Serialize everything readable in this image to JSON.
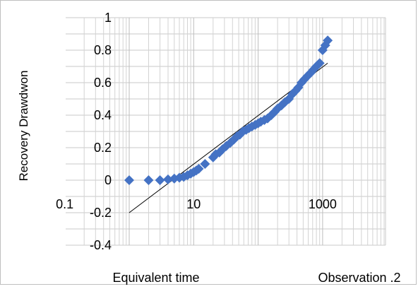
{
  "chart_data": {
    "type": "scatter",
    "title": "",
    "xlabel": "Equivalent time",
    "ylabel": "Recovery  Drawdwon",
    "annotation": "Observation .2",
    "x_scale": "log",
    "xlim": [
      1,
      1500
    ],
    "ylim": [
      -0.4,
      1
    ],
    "y_ticks": [
      -0.4,
      -0.2,
      0,
      0.2,
      0.4,
      0.6,
      0.8,
      1
    ],
    "y_tick_labels": [
      "-0.4",
      "-0.2",
      "0",
      "0.2",
      "0.4",
      "0.6",
      "0.8",
      "1"
    ],
    "x_ticks": [
      0.1,
      10,
      1000
    ],
    "x_tick_labels": [
      "0.1",
      "10",
      "1000"
    ],
    "grid": true,
    "legend": "none",
    "marker_color": "#4472C4",
    "trendline_color": "#000000",
    "series": [
      {
        "type": "scatter",
        "points": [
          [
            1,
            0
          ],
          [
            2,
            0
          ],
          [
            3,
            0
          ],
          [
            4,
            0.005
          ],
          [
            5,
            0.01
          ],
          [
            6,
            0.015
          ],
          [
            7,
            0.02
          ],
          [
            8,
            0.03
          ],
          [
            9,
            0.04
          ],
          [
            10,
            0.05
          ],
          [
            11,
            0.06
          ],
          [
            12,
            0.07
          ],
          [
            15,
            0.1
          ],
          [
            20,
            0.14
          ],
          [
            22,
            0.16
          ],
          [
            25,
            0.17
          ],
          [
            28,
            0.19
          ],
          [
            32,
            0.21
          ],
          [
            37,
            0.23
          ],
          [
            42,
            0.25
          ],
          [
            47,
            0.27
          ],
          [
            52,
            0.28
          ],
          [
            58,
            0.3
          ],
          [
            65,
            0.31
          ],
          [
            72,
            0.32
          ],
          [
            80,
            0.33
          ],
          [
            90,
            0.34
          ],
          [
            100,
            0.35
          ],
          [
            110,
            0.36
          ],
          [
            125,
            0.37
          ],
          [
            140,
            0.38
          ],
          [
            160,
            0.4
          ],
          [
            180,
            0.42
          ],
          [
            200,
            0.44
          ],
          [
            230,
            0.46
          ],
          [
            260,
            0.48
          ],
          [
            300,
            0.5
          ],
          [
            340,
            0.53
          ],
          [
            380,
            0.55
          ],
          [
            420,
            0.57
          ],
          [
            470,
            0.6
          ],
          [
            520,
            0.62
          ],
          [
            580,
            0.64
          ],
          [
            650,
            0.66
          ],
          [
            720,
            0.68
          ],
          [
            800,
            0.7
          ],
          [
            900,
            0.72
          ],
          [
            1000,
            0.8
          ],
          [
            1100,
            0.83
          ],
          [
            1200,
            0.86
          ]
        ]
      },
      {
        "type": "trendline",
        "points": [
          [
            1,
            -0.2
          ],
          [
            1200,
            0.72
          ]
        ]
      }
    ]
  }
}
